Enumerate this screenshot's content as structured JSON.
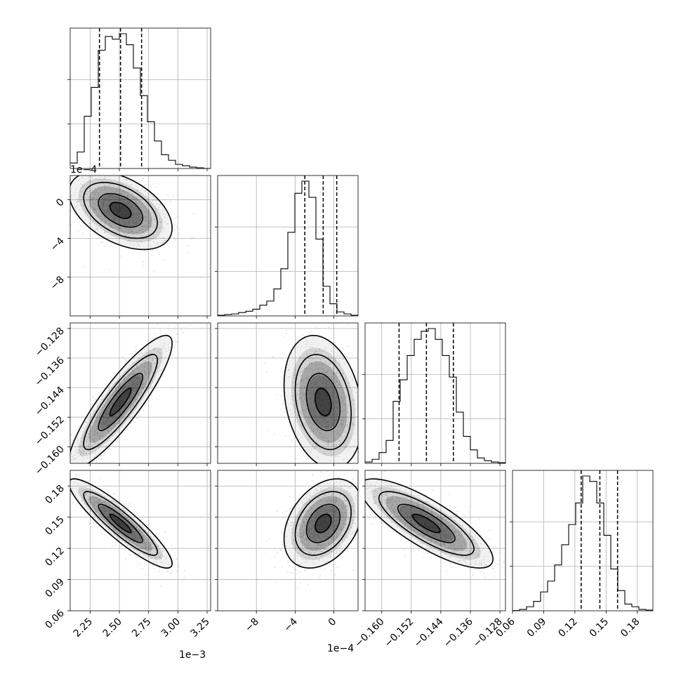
{
  "chart_data": {
    "type": "corner",
    "title": "",
    "parameters": [
      "",
      "",
      "",
      ""
    ],
    "offset_labels": {
      "p1_x": "1e−3",
      "p2_x": "1e−4",
      "p2_y": "1e−4"
    },
    "ranges": [
      [
        2.08,
        3.28
      ],
      [
        -12.0,
        2.5
      ],
      [
        -0.1645,
        -0.1265
      ],
      [
        0.06,
        0.195
      ]
    ],
    "ticks": {
      "p1": {
        "values": [
          2.25,
          2.5,
          2.75,
          3.0,
          3.25
        ],
        "labels": [
          "2.25",
          "2.50",
          "2.75",
          "3.00",
          "3.25"
        ]
      },
      "p2": {
        "values": [
          -8,
          -4,
          0
        ],
        "labels": [
          "−8",
          "−4",
          "0"
        ]
      },
      "p3": {
        "values": [
          -0.16,
          -0.152,
          -0.144,
          -0.136,
          -0.128
        ],
        "labels": [
          "−0.160",
          "−0.152",
          "−0.144",
          "−0.136",
          "−0.128"
        ]
      },
      "p4": {
        "values": [
          0.06,
          0.09,
          0.12,
          0.15,
          0.18
        ],
        "labels": [
          "0.06",
          "0.09",
          "0.12",
          "0.15",
          "0.18"
        ]
      }
    },
    "quantiles": {
      "p1": [
        2.33,
        2.51,
        2.69
      ],
      "p2": [
        -3.0,
        -1.1,
        0.3
      ],
      "p3": [
        -0.1553,
        -0.1479,
        -0.1406
      ],
      "p4": [
        0.126,
        0.144,
        0.161
      ]
    },
    "marginals": {
      "p1": {
        "edges_start": 2.08,
        "bin_width": 0.06,
        "counts": [
          4,
          12,
          38,
          59,
          86,
          96,
          94,
          98,
          90,
          73,
          53,
          34,
          20,
          10,
          6,
          3,
          2,
          1,
          0.5,
          0
        ]
      },
      "p2": {
        "edges_start": -12.0,
        "bin_width": 0.725,
        "counts": [
          0.5,
          1,
          1.5,
          2.5,
          3.5,
          5,
          8,
          11,
          20,
          35,
          62,
          91,
          100,
          88,
          57,
          22,
          9,
          3,
          1.5,
          0.5
        ]
      },
      "p3": {
        "edges_start": -0.1645,
        "bin_width": 0.0019,
        "counts": [
          1,
          3,
          8,
          17,
          46,
          62,
          80,
          92,
          98,
          100,
          92,
          80,
          64,
          38,
          20,
          10,
          4,
          2,
          1,
          0.5
        ]
      },
      "p4": {
        "edges_start": 0.06,
        "bin_width": 0.00675,
        "counts": [
          0.2,
          1,
          3,
          7,
          14,
          22,
          34,
          49,
          64,
          80,
          100,
          96,
          80,
          56,
          31,
          15,
          5,
          3,
          1,
          0.5
        ]
      }
    },
    "correlations": {
      "p2_p1": -0.45,
      "p3_p1": 0.88,
      "p3_p2": -0.25,
      "p4_p1": -0.9,
      "p4_p2": 0.35,
      "p4_p3": -0.8
    },
    "grid": true,
    "colors": {
      "line": "#000000",
      "grid": "#b0b0b0",
      "density": "#000000",
      "points": "#7f7f7f"
    }
  }
}
